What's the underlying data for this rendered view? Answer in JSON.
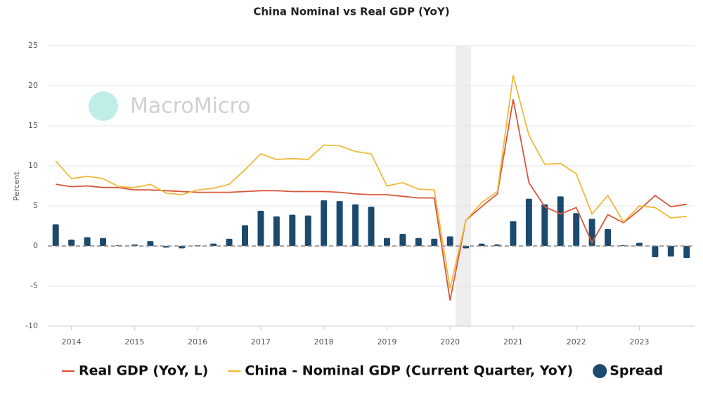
{
  "chart_data": {
    "type": "combo",
    "title": "China Nominal vs Real GDP (YoY)",
    "y_label": "Percent",
    "watermark": "MacroMicro",
    "categories": [
      null,
      "2014",
      null,
      null,
      null,
      "2015",
      null,
      null,
      null,
      "2016",
      null,
      null,
      null,
      "2017",
      null,
      null,
      null,
      "2018",
      null,
      null,
      null,
      "2019",
      null,
      null,
      null,
      "2020",
      null,
      null,
      null,
      "2021",
      null,
      null,
      null,
      "2022",
      null,
      null,
      null,
      "2023",
      null,
      null,
      null
    ],
    "ylim": [
      -10,
      25
    ],
    "yticks": [
      -10,
      -5,
      0,
      5,
      10,
      15,
      20,
      25
    ],
    "grid": true,
    "series": [
      {
        "name": "Real GDP (YoY, L)",
        "type": "line",
        "color": "#d9573b",
        "values": [
          7.7,
          7.4,
          7.5,
          7.3,
          7.3,
          7.0,
          7.0,
          6.9,
          6.8,
          6.7,
          6.7,
          6.7,
          6.8,
          6.9,
          6.9,
          6.8,
          6.8,
          6.8,
          6.7,
          6.5,
          6.4,
          6.4,
          6.2,
          6.0,
          6.0,
          -6.8,
          3.2,
          4.9,
          6.5,
          18.3,
          7.9,
          4.9,
          4.0,
          4.8,
          0.4,
          3.9,
          2.9,
          4.5,
          6.3,
          4.9,
          5.2
        ]
      },
      {
        "name": "China - Nominal GDP (Current Quarter, YoY)",
        "type": "line",
        "color": "#f0b93a",
        "values": [
          10.6,
          8.4,
          8.7,
          8.4,
          7.4,
          7.3,
          7.7,
          6.6,
          6.4,
          7.0,
          7.2,
          7.7,
          9.5,
          11.5,
          10.8,
          10.9,
          10.8,
          12.6,
          12.5,
          11.8,
          11.5,
          7.5,
          7.9,
          7.1,
          7.0,
          -5.3,
          3.2,
          5.4,
          6.8,
          21.3,
          13.8,
          10.2,
          10.3,
          9.0,
          4.0,
          6.3,
          3.0,
          5.0,
          4.8,
          3.5,
          3.7
        ]
      },
      {
        "name": "Spread",
        "type": "bar",
        "color": "#1b4a6e",
        "values": [
          2.7,
          0.8,
          1.1,
          1.0,
          0.1,
          0.2,
          0.6,
          -0.2,
          -0.3,
          0.1,
          0.3,
          0.9,
          2.6,
          4.4,
          3.7,
          3.9,
          3.8,
          5.7,
          5.6,
          5.2,
          4.9,
          1.0,
          1.5,
          1.0,
          0.9,
          1.2,
          -0.3,
          0.3,
          0.2,
          3.1,
          5.9,
          5.2,
          6.2,
          4.1,
          3.4,
          2.1,
          0.1,
          0.4,
          -1.4,
          -1.3,
          -1.5
        ]
      }
    ]
  }
}
